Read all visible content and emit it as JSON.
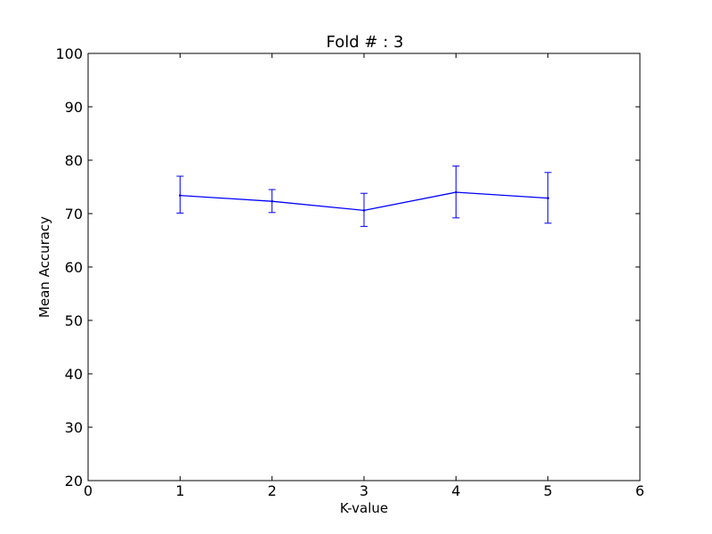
{
  "chart_data": {
    "type": "line",
    "title": "Fold # : 3",
    "xlabel": "K-value",
    "ylabel": "Mean Accuracy",
    "xlim": [
      0,
      6
    ],
    "ylim": [
      20,
      100
    ],
    "xticks": [
      0,
      1,
      2,
      3,
      4,
      5,
      6
    ],
    "yticks": [
      20,
      30,
      40,
      50,
      60,
      70,
      80,
      90,
      100
    ],
    "grid": false,
    "series": [
      {
        "color": "#0000ff",
        "x": [
          1,
          2,
          3,
          4,
          5
        ],
        "y": [
          73.4,
          72.3,
          70.6,
          74.0,
          72.9
        ],
        "yerr_low": [
          70.1,
          70.2,
          67.6,
          69.2,
          68.2
        ],
        "yerr_high": [
          77.0,
          74.5,
          73.8,
          78.9,
          77.7
        ]
      }
    ]
  }
}
